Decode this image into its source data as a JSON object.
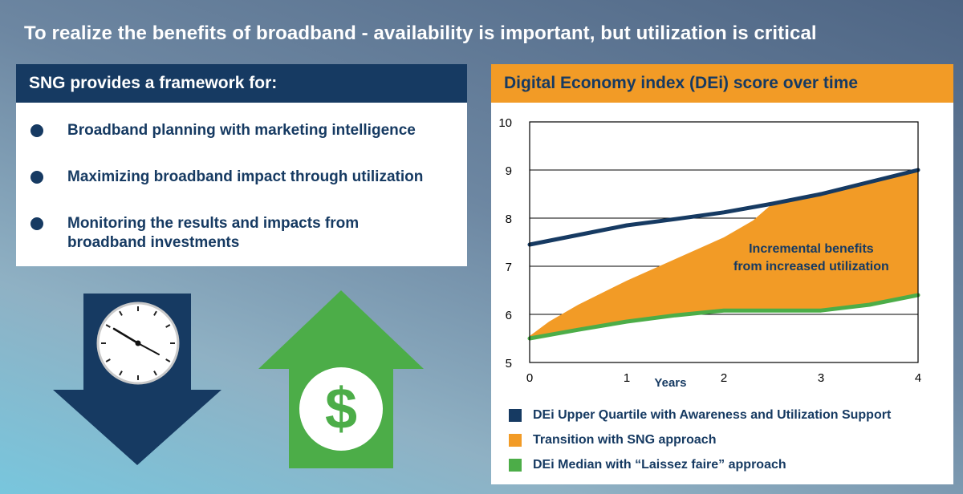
{
  "headline": "To realize the benefits of broadband - availability is important, but utilization is critical",
  "framework": {
    "title": "SNG provides a framework for:",
    "items": [
      {
        "line1": "Broadband planning with marketing intelligence",
        "line2": ""
      },
      {
        "line1": "Maximizing broadband impact through utilization",
        "line2": ""
      },
      {
        "line1": "Monitoring the results and impacts from",
        "line2": "broadband investments"
      }
    ]
  },
  "icons": {
    "down_arrow": {
      "name": "down-arrow-clock-icon",
      "color": "#163a62"
    },
    "up_arrow": {
      "name": "up-arrow-dollar-icon",
      "color": "#4cad48"
    },
    "dollar_symbol": "$"
  },
  "chart_data": {
    "type": "area",
    "title": "Digital Economy index (DEi) score over time",
    "xlabel": "Years",
    "ylabel": "",
    "xlim": [
      0,
      4
    ],
    "ylim": [
      5,
      10
    ],
    "x_ticks": [
      0,
      1,
      2,
      3,
      4
    ],
    "y_ticks": [
      5,
      6,
      7,
      8,
      9,
      10
    ],
    "grid": "horizontal",
    "legend_position": "bottom",
    "annotation": {
      "line1": "Incremental benefits",
      "line2": "from increased utilization",
      "x": 2.9,
      "y": 7.05
    },
    "series": [
      {
        "name": "DEi Upper Quartile with Awareness and Utilization Support",
        "kind": "line",
        "color": "#163a62",
        "x": [
          0,
          0.5,
          1,
          1.5,
          2,
          2.5,
          3,
          3.5,
          4
        ],
        "y": [
          7.45,
          7.65,
          7.85,
          7.98,
          8.12,
          8.3,
          8.5,
          8.75,
          9.0
        ]
      },
      {
        "name": "Transition with SNG approach",
        "kind": "area",
        "color": "#f29b26",
        "x": [
          0,
          0.2,
          0.5,
          1,
          1.5,
          2,
          2.3,
          2.5,
          3,
          3.5,
          4
        ],
        "y": [
          5.55,
          5.85,
          6.2,
          6.7,
          7.15,
          7.6,
          7.95,
          8.3,
          8.5,
          8.75,
          9.0
        ]
      },
      {
        "name": "DEi Median with “Laissez faire” approach",
        "kind": "line",
        "color": "#4cad48",
        "x": [
          0,
          0.5,
          1,
          1.5,
          2,
          2.5,
          3,
          3.5,
          4
        ],
        "y": [
          5.5,
          5.68,
          5.85,
          5.98,
          6.08,
          6.08,
          6.08,
          6.2,
          6.4
        ]
      }
    ]
  }
}
